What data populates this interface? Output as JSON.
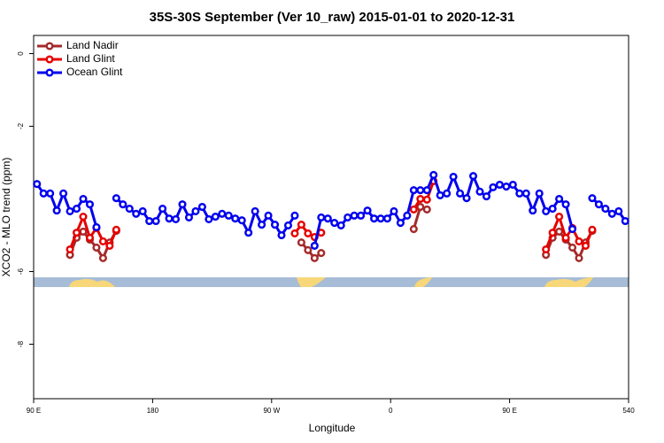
{
  "chart_data": {
    "type": "line",
    "title": "35S-30S September (Ver 10_raw)   2015-01-01 to 2020-12-31",
    "x_label": "Longitude",
    "y_label": "XCO2 - MLO trend (ppm)",
    "xlim": [
      90,
      540
    ],
    "ylim": [
      -9.5,
      0.5
    ],
    "xticks": [
      {
        "value": 90,
        "label": "90 E"
      },
      180,
      {
        "value": 270,
        "label": "90 W"
      },
      {
        "value": 360,
        "label": "0"
      },
      {
        "value": 450,
        "label": "90 E"
      },
      540
    ],
    "yticks": [
      0,
      -2,
      -6,
      -8
    ],
    "legend": "top-left",
    "series": [
      {
        "name": "Land Nadir",
        "color": "#a52a2a",
        "x": [
          117.5,
          122.5,
          127.5,
          132.5,
          137.5,
          142.5,
          147.5,
          152.5,
          157.5,
          292.5,
          297.5,
          302.5,
          307.5,
          312.5,
          377.5,
          382.5,
          387.5,
          392.5,
          477.5,
          482.5,
          487.5,
          492.5,
          497.5,
          502.5,
          507.5,
          512.5
        ],
        "values": [
          -5.54,
          -5.07,
          -4.9,
          -5.12,
          -5.34,
          -5.63,
          -5.2,
          -4.88,
          null,
          -5.2,
          -5.41,
          -5.63,
          -5.49,
          null,
          -4.83,
          -4.22,
          -4.29,
          null,
          -5.54,
          -5.07,
          -4.9,
          -5.12,
          -5.34,
          -5.63,
          -5.2,
          -4.88
        ]
      },
      {
        "name": "Land Glint",
        "color": "#e60000",
        "x": [
          117.5,
          122.5,
          127.5,
          132.5,
          137.5,
          142.5,
          147.5,
          152.5,
          157.5,
          287.5,
          292.5,
          297.5,
          302.5,
          307.5,
          312.5,
          377.5,
          382.5,
          387.5,
          392.5,
          397.5,
          477.5,
          482.5,
          487.5,
          492.5,
          497.5,
          502.5,
          507.5,
          512.5
        ],
        "values": [
          -5.39,
          -4.93,
          -4.49,
          -5.07,
          -4.8,
          -5.17,
          -5.29,
          -4.85,
          null,
          -4.95,
          -4.71,
          -4.95,
          -5.05,
          -4.93,
          null,
          -4.29,
          -4.0,
          -4.02,
          -3.51,
          null,
          -5.39,
          -4.93,
          -4.49,
          -5.07,
          -4.8,
          -5.17,
          -5.29,
          -4.85
        ]
      },
      {
        "name": "Ocean Glint",
        "color": "#0000ee",
        "x": [
          92.5,
          97.5,
          102.5,
          107.5,
          112.5,
          117.5,
          122.5,
          127.5,
          132.5,
          137.5,
          142.5,
          147.5,
          152.5,
          157.5,
          162.5,
          167.5,
          172.5,
          177.5,
          182.5,
          187.5,
          192.5,
          197.5,
          202.5,
          207.5,
          212.5,
          217.5,
          222.5,
          227.5,
          232.5,
          237.5,
          242.5,
          247.5,
          252.5,
          257.5,
          262.5,
          267.5,
          272.5,
          277.5,
          282.5,
          287.5,
          292.5,
          297.5,
          302.5,
          307.5,
          312.5,
          317.5,
          322.5,
          327.5,
          332.5,
          337.5,
          342.5,
          347.5,
          352.5,
          357.5,
          362.5,
          367.5,
          372.5,
          377.5,
          382.5,
          387.5,
          392.5,
          397.5,
          402.5,
          407.5,
          412.5,
          417.5,
          422.5,
          427.5,
          432.5,
          437.5,
          442.5,
          447.5,
          452.5,
          457.5,
          462.5,
          467.5,
          472.5,
          477.5,
          482.5,
          487.5,
          492.5,
          497.5,
          502.5,
          507.5,
          512.5,
          517.5,
          522.5,
          527.5,
          532.5,
          537.5
        ],
        "values": [
          -3.59,
          -3.85,
          -3.85,
          -4.32,
          -3.85,
          -4.34,
          -4.27,
          -4.0,
          -4.15,
          -4.78,
          null,
          null,
          -3.98,
          -4.15,
          -4.27,
          -4.41,
          -4.34,
          -4.61,
          -4.61,
          -4.27,
          -4.54,
          -4.56,
          -4.15,
          -4.51,
          -4.34,
          -4.22,
          -4.56,
          -4.49,
          -4.41,
          -4.46,
          -4.54,
          -4.59,
          -4.93,
          -4.34,
          -4.71,
          -4.46,
          -4.71,
          -5.0,
          -4.73,
          -4.46,
          null,
          null,
          -5.29,
          -4.51,
          -4.54,
          -4.66,
          -4.73,
          -4.51,
          -4.46,
          -4.46,
          -4.32,
          -4.54,
          -4.54,
          -4.54,
          -4.34,
          -4.66,
          -4.46,
          -3.76,
          -3.76,
          -3.76,
          -3.34,
          -3.9,
          -3.85,
          -3.39,
          -3.85,
          -3.98,
          -3.37,
          -3.8,
          -3.93,
          -3.68,
          -3.61,
          -3.66,
          -3.61,
          -3.85,
          -3.85,
          -4.32,
          -3.85,
          -4.34,
          -4.27,
          -4.0,
          -4.15,
          -4.83,
          null,
          null,
          -3.98,
          -4.15,
          -4.27,
          -4.41,
          -4.34,
          -4.61
        ]
      }
    ]
  }
}
